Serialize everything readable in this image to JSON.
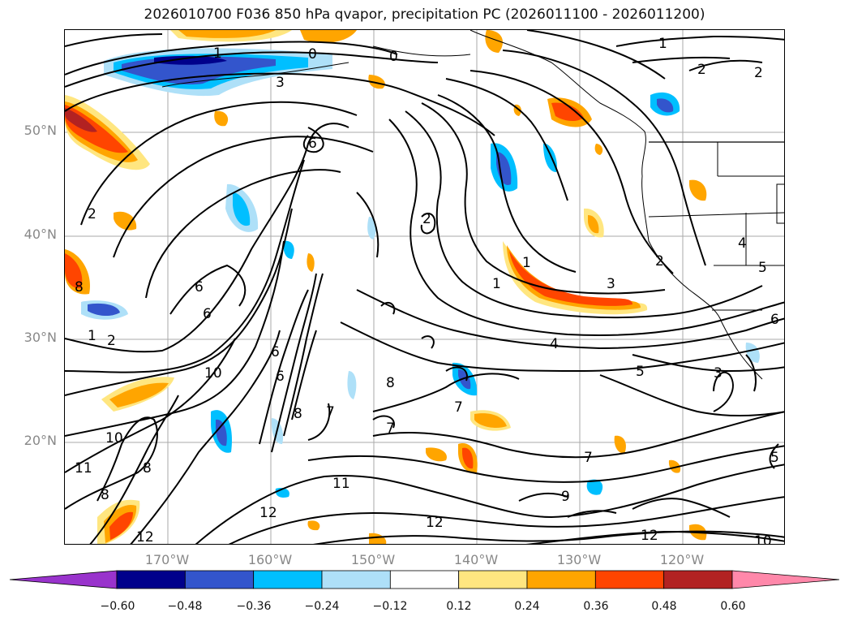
{
  "title": "2026010700 F036 850 hPa qvapor, precipitation PC (2026011100 - 2026011200)",
  "lat_labels": [
    "50°N",
    "40°N",
    "30°N",
    "20°N"
  ],
  "lon_labels": [
    "170°W",
    "160°W",
    "150°W",
    "140°W",
    "130°W",
    "120°W"
  ],
  "contour_labels": [
    "1",
    "2",
    "3",
    "4",
    "5",
    "6",
    "7",
    "8",
    "10",
    "11",
    "12",
    "0",
    "9"
  ],
  "colorbar": {
    "ticks": [
      "−0.60",
      "−0.48",
      "−0.36",
      "−0.24",
      "−0.12",
      "0.12",
      "0.24",
      "0.36",
      "0.48",
      "0.60"
    ],
    "colors": [
      "#9933cc",
      "#00008b",
      "#3355cc",
      "#00bfff",
      "#aee0f8",
      "#ffffff",
      "#ffe680",
      "#ffa500",
      "#ff4500",
      "#b22222",
      "#ff88aa"
    ]
  }
}
